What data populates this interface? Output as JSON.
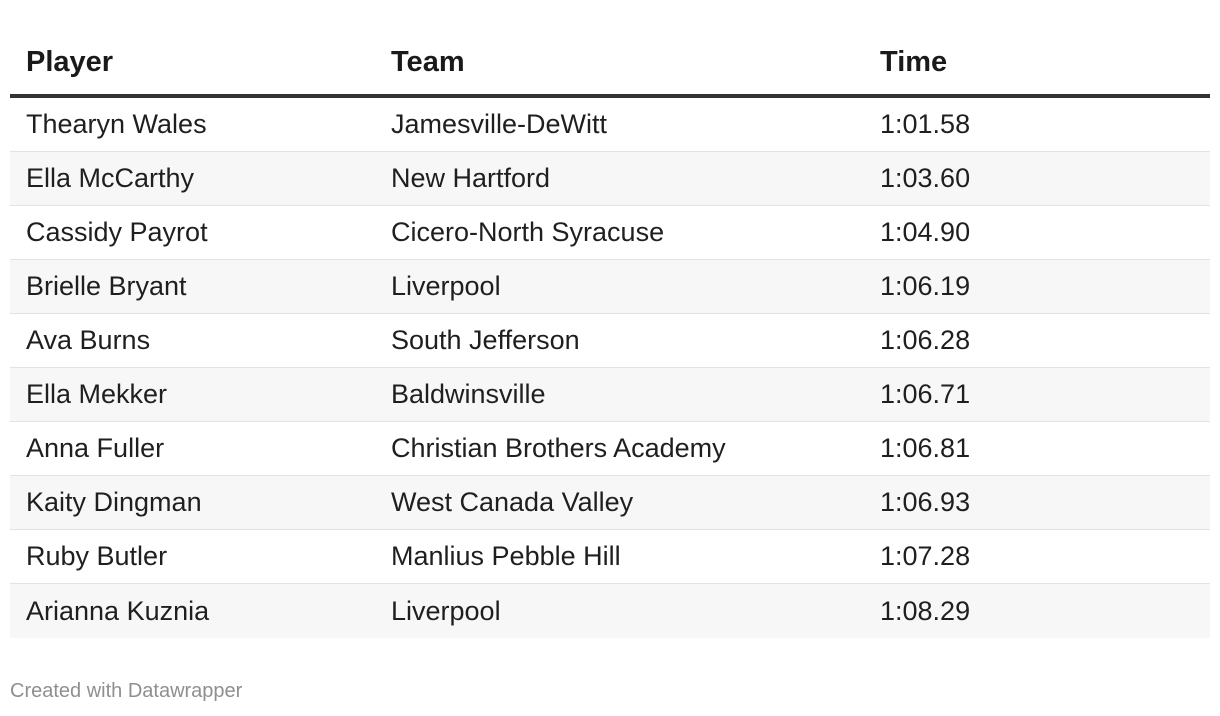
{
  "chart_data": {
    "type": "table",
    "columns": [
      "Player",
      "Team",
      "Time"
    ],
    "rows": [
      [
        "Thearyn Wales",
        "Jamesville-DeWitt",
        "1:01.58"
      ],
      [
        "Ella McCarthy",
        "New Hartford",
        "1:03.60"
      ],
      [
        "Cassidy Payrot",
        "Cicero-North Syracuse",
        "1:04.90"
      ],
      [
        "Brielle Bryant",
        "Liverpool",
        "1:06.19"
      ],
      [
        "Ava Burns",
        "South Jefferson",
        "1:06.28"
      ],
      [
        "Ella Mekker",
        "Baldwinsville",
        "1:06.71"
      ],
      [
        "Anna Fuller",
        "Christian Brothers Academy",
        "1:06.81"
      ],
      [
        "Kaity Dingman",
        "West Canada Valley",
        "1:06.93"
      ],
      [
        "Ruby Butler",
        "Manlius Pebble Hill",
        "1:07.28"
      ],
      [
        "Arianna Kuznia",
        "Liverpool",
        "1:08.29"
      ]
    ]
  },
  "footer": {
    "credit": "Created with Datawrapper"
  }
}
